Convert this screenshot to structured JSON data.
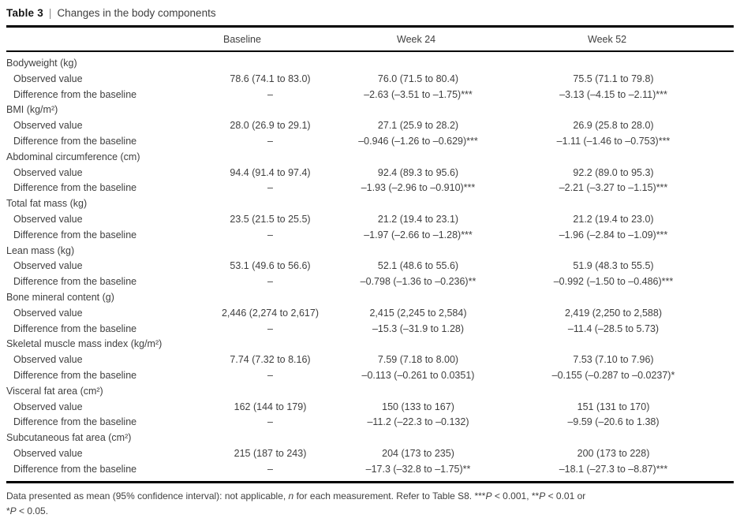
{
  "title": {
    "label": "Table 3",
    "separator": "|",
    "caption": "Changes in the body components"
  },
  "table": {
    "columns": {
      "baseline": "Baseline",
      "week24": "Week 24",
      "week52": "Week 52"
    },
    "groups": [
      {
        "name": "Bodyweight (kg)",
        "rows": [
          {
            "label": "Observed value",
            "baseline": "78.6 (74.1 to 83.0)",
            "week24": "76.0 (71.5 to 80.4)",
            "week52": "75.5 (71.1 to 79.8)"
          },
          {
            "label": "Difference from the baseline",
            "baseline": "–",
            "week24": "–2.63 (–3.51 to –1.75)***",
            "week52": "–3.13 (–4.15 to –2.11)***"
          }
        ]
      },
      {
        "name": "BMI (kg/m²)",
        "rows": [
          {
            "label": "Observed value",
            "baseline": "28.0 (26.9 to 29.1)",
            "week24": "27.1 (25.9 to 28.2)",
            "week52": "26.9 (25.8 to 28.0)"
          },
          {
            "label": "Difference from the baseline",
            "baseline": "–",
            "week24": "–0.946 (–1.26 to –0.629)***",
            "week52": "–1.11 (–1.46 to –0.753)***"
          }
        ]
      },
      {
        "name": "Abdominal circumference (cm)",
        "rows": [
          {
            "label": "Observed value",
            "baseline": "94.4 (91.4 to 97.4)",
            "week24": "92.4 (89.3 to 95.6)",
            "week52": "92.2 (89.0 to 95.3)"
          },
          {
            "label": "Difference from the baseline",
            "baseline": "–",
            "week24": "–1.93 (–2.96 to –0.910)***",
            "week52": "–2.21 (–3.27 to –1.15)***"
          }
        ]
      },
      {
        "name": "Total fat mass (kg)",
        "rows": [
          {
            "label": "Observed value",
            "baseline": "23.5 (21.5 to 25.5)",
            "week24": "21.2 (19.4 to 23.1)",
            "week52": "21.2 (19.4 to 23.0)"
          },
          {
            "label": "Difference from the baseline",
            "baseline": "–",
            "week24": "–1.97 (–2.66 to –1.28)***",
            "week52": "–1.96 (–2.84 to –1.09)***"
          }
        ]
      },
      {
        "name": "Lean mass (kg)",
        "rows": [
          {
            "label": "Observed value",
            "baseline": "53.1 (49.6 to 56.6)",
            "week24": "52.1 (48.6 to 55.6)",
            "week52": "51.9 (48.3 to 55.5)"
          },
          {
            "label": "Difference from the baseline",
            "baseline": "–",
            "week24": "–0.798 (–1.36 to –0.236)**",
            "week52": "–0.992 (–1.50 to –0.486)***"
          }
        ]
      },
      {
        "name": "Bone mineral content (g)",
        "rows": [
          {
            "label": "Observed value",
            "baseline": "2,446 (2,274 to 2,617)",
            "week24": "2,415 (2,245 to 2,584)",
            "week52": "2,419 (2,250 to 2,588)"
          },
          {
            "label": "Difference from the baseline",
            "baseline": "–",
            "week24": "–15.3 (–31.9 to 1.28)",
            "week52": "–11.4 (–28.5 to 5.73)"
          }
        ]
      },
      {
        "name": "Skeletal muscle mass index (kg/m²)",
        "rows": [
          {
            "label": "Observed value",
            "baseline": "7.74 (7.32 to 8.16)",
            "week24": "7.59 (7.18 to 8.00)",
            "week52": "7.53 (7.10 to 7.96)"
          },
          {
            "label": "Difference from the baseline",
            "baseline": "–",
            "week24": "–0.113 (–0.261 to 0.0351)",
            "week52": "–0.155 (–0.287 to –0.0237)*"
          }
        ]
      },
      {
        "name": "Visceral fat area (cm²)",
        "rows": [
          {
            "label": "Observed value",
            "baseline": "162 (144 to 179)",
            "week24": "150 (133 to 167)",
            "week52": "151 (131 to 170)"
          },
          {
            "label": "Difference from the baseline",
            "baseline": "–",
            "week24": "–11.2 (–22.3 to –0.132)",
            "week52": "–9.59 (–20.6 to 1.38)"
          }
        ]
      },
      {
        "name": "Subcutaneous fat area (cm²)",
        "rows": [
          {
            "label": "Observed value",
            "baseline": "215 (187 to 243)",
            "week24": "204 (173 to 235)",
            "week52": "200 (173 to 228)"
          },
          {
            "label": "Difference from the baseline",
            "baseline": "–",
            "week24": "–17.3 (–32.8 to –1.75)**",
            "week52": "–18.1 (–27.3 to –8.87)***"
          }
        ]
      }
    ]
  },
  "footnote": {
    "line1": {
      "s1": "Data presented as mean (95% confidence interval): not applicable, ",
      "s2": "n",
      "s3": " for each measurement. Refer to Table S8. ***",
      "s4": "P",
      "s5": " < 0.001, **",
      "s6": "P",
      "s7": " < 0.01 or"
    },
    "line2": {
      "s1": "*",
      "s2": "P",
      "s3": " < 0.05."
    }
  }
}
